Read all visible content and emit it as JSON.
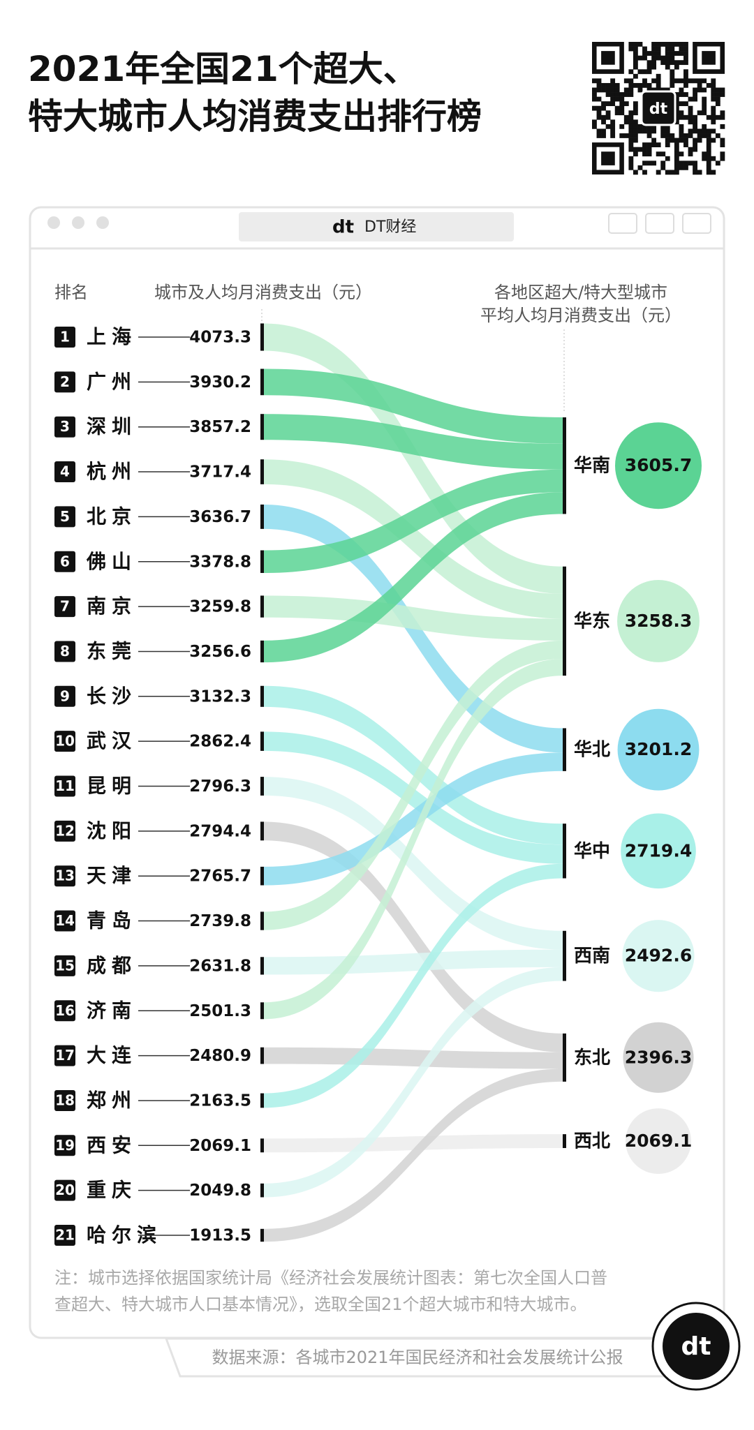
{
  "chart_data": {
    "type": "sankey",
    "title": [
      "2021年全国21个超大、",
      "特大城市人均消费支出排行榜"
    ],
    "brand": "DT财经",
    "rank_header": "排名",
    "city_header": "城市及人均月消费支出（元）",
    "region_header": [
      "各地区超大/特大型城市",
      "平均人均月消费支出（元）"
    ],
    "ranks": [
      1,
      2,
      3,
      4,
      5,
      6,
      7,
      8,
      9,
      10,
      11,
      12,
      13,
      14,
      15,
      16,
      17,
      18,
      19,
      20,
      21
    ],
    "categories": [
      "上海",
      "广州",
      "深圳",
      "杭州",
      "北京",
      "佛山",
      "南京",
      "东莞",
      "长沙",
      "武汉",
      "昆明",
      "沈阳",
      "天津",
      "青岛",
      "成都",
      "济南",
      "大连",
      "郑州",
      "西安",
      "重庆",
      "哈尔滨"
    ],
    "values": [
      4073.3,
      3930.2,
      3857.2,
      3717.4,
      3636.7,
      3378.8,
      3259.8,
      3256.6,
      3132.3,
      2862.4,
      2796.3,
      2794.4,
      2765.7,
      2739.8,
      2631.8,
      2501.3,
      2480.9,
      2163.5,
      2069.1,
      2049.8,
      1913.5
    ],
    "region_of": [
      1,
      0,
      0,
      1,
      2,
      0,
      1,
      0,
      3,
      3,
      4,
      5,
      2,
      1,
      4,
      1,
      5,
      3,
      6,
      4,
      5
    ],
    "regions": [
      {
        "name": "华南",
        "value": 3605.7,
        "color": "#5bd394"
      },
      {
        "name": "华东",
        "value": 3258.3,
        "color": "#c4f0d3"
      },
      {
        "name": "华北",
        "value": 3201.2,
        "color": "#8ddcef"
      },
      {
        "name": "华中",
        "value": 2719.4,
        "color": "#a9f0e8"
      },
      {
        "name": "西南",
        "value": 2492.6,
        "color": "#daf6f2"
      },
      {
        "name": "东北",
        "value": 2396.3,
        "color": "#d2d2d2"
      },
      {
        "name": "西北",
        "value": 2069.1,
        "color": "#ececec"
      }
    ],
    "note": [
      "注：城市选择依据国家统计局《经济社会发展统计图表：第七次全国人口普",
      "查超大、特大城市人口基本情况》，选取全国21个超大城市和特大城市。"
    ],
    "source": "数据来源：各城市2021年国民经济和社会发展统计公报"
  }
}
